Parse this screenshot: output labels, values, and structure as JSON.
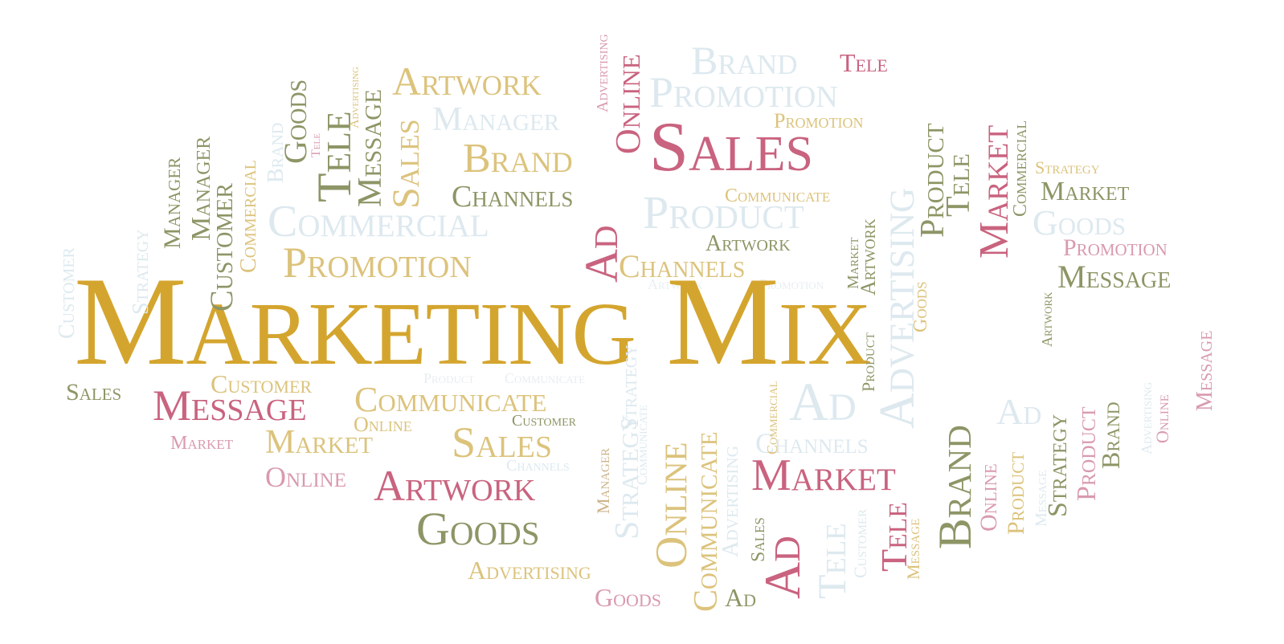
{
  "title": "Marketing Mix",
  "colors": {
    "gold": "#d4a52e",
    "light_gold": "#dcc37c",
    "rose": "#c9637f",
    "light_rose": "#d99aaf",
    "olive": "#8e9566",
    "light_olive": "#a3a87c",
    "pale_blue": "#dde9ef",
    "tan": "#cdb48a",
    "background": "#ffffff"
  },
  "words": {
    "sales_big": "Sales",
    "brand_top": "Brand",
    "tele_top": "Tele",
    "promotion_top": "Promotion",
    "artwork_top": "Artwork",
    "manager_top": "Manager",
    "brand_mid": "Brand",
    "channels_1": "Channels",
    "commercial_pale": "Commercial",
    "product_pale": "Product",
    "promotion_small": "Promotion",
    "communicate_small": "Communicate",
    "promotion_mid": "Promotion",
    "artwork_mid": "Artwork",
    "channels_2": "Channels",
    "artwork_tiny": "Artwork",
    "promotion_tiny": "Promotion",
    "strategy_right": "Strategy",
    "market_right": "Market",
    "goods_pale_right": "Goods",
    "promotion_right": "Promotion",
    "message_right": "Message",
    "sales_left": "Sales",
    "customer_low": "Customer",
    "product_tiny": "Product",
    "communicate_faint": "Communicate",
    "message_low": "Message",
    "communicate_low": "Communicate",
    "online_low": "Online",
    "customer_small": "Customer",
    "market_tiny": "Market",
    "market_low": "Market",
    "sales_low": "Sales",
    "channels_pale": "Channels",
    "online_rose": "Online",
    "artwork_low": "Artwork",
    "goods_low": "Goods",
    "advertising_low": "Advertising",
    "goods_bottom": "Goods",
    "ad_bottom": "Ad",
    "ad_pale": "Ad",
    "channels_pale2": "Channels",
    "market_big": "Market",
    "ad_pale_right": "Ad",
    "online_v_top": "Online",
    "advertising_v_top": "Advertising",
    "goods_v": "Goods",
    "tele_v1": "Tele",
    "message_v1": "Message",
    "sales_v1": "Sales",
    "brand_v_pale": "Brand",
    "advertising_v_tiny": "Advertising",
    "tele_v_tiny": "Tele",
    "manager_v1": "Manager",
    "manager_v2": "Manager",
    "customer_v1": "Customer",
    "commercial_v1": "Commercial",
    "strategy_v_pale": "Strategy",
    "customer_v_pale": "Customer",
    "ad_v_mid": "Ad",
    "advertising_v_pale": "Advertising",
    "product_v": "Product",
    "market_v_right": "Market",
    "tele_v_right": "Tele",
    "commercial_v_right": "Commercial",
    "artwork_v_small": "Artwork",
    "market_v_small": "Market",
    "goods_v_small": "Goods",
    "product_v_small": "Product",
    "artwork_v_right": "Artwork",
    "message_v_edge": "Message",
    "online_v_low": "Online",
    "communicate_v_low": "Communicate",
    "ad_v_low": "Ad",
    "sales_v_low": "Sales",
    "brand_v_low": "Brand",
    "online_v_right": "Online",
    "product_v_right": "Product",
    "strategy_v_right": "Strategy",
    "product_v_right2": "Product",
    "brand_v_right2": "Brand",
    "tele_v_low": "Tele",
    "message_v_low": "Message",
    "strategy_v_low": "Strategy",
    "manager_v_low": "Manager",
    "commercial_v_low": "Commercial",
    "advertising_v_low": "Advertising",
    "tele_v_low2": "Tele",
    "customer_v_low": "Customer",
    "strategy_v_mid": "Strategy",
    "communicate_v_mid": "Communicate",
    "message_v_mid": "Message",
    "online_v_edge": "Online",
    "advertising_v_edge": "Advertising"
  }
}
